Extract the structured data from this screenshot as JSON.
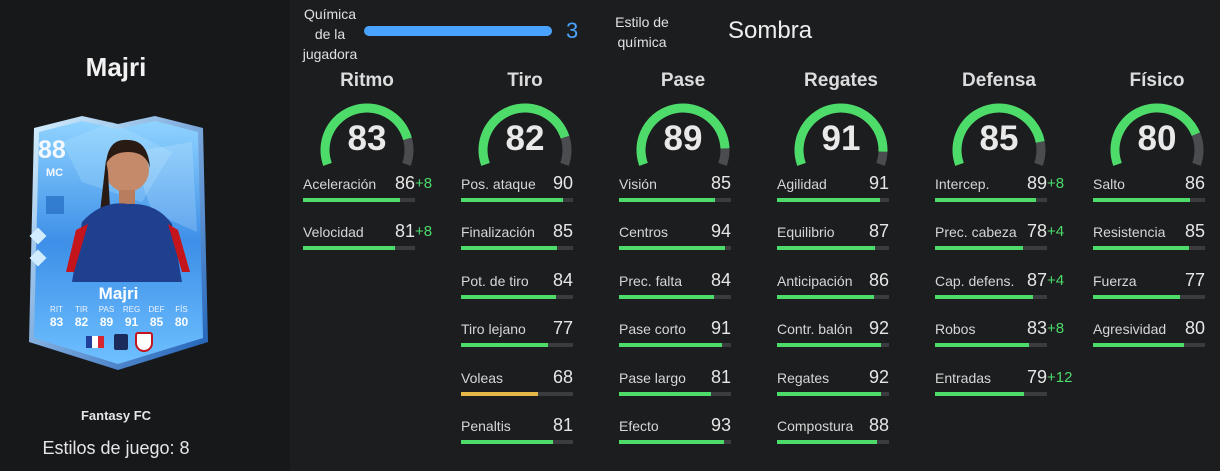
{
  "player": {
    "name_title": "Majri",
    "card": {
      "rating": "88",
      "position": "MC",
      "name": "Majri",
      "stats": [
        {
          "label": "RIT",
          "value": "83"
        },
        {
          "label": "TIR",
          "value": "82"
        },
        {
          "label": "PAS",
          "value": "89"
        },
        {
          "label": "REG",
          "value": "91"
        },
        {
          "label": "DEF",
          "value": "85"
        },
        {
          "label": "FÍS",
          "value": "80"
        }
      ]
    },
    "card_type": "Fantasy FC",
    "playstyles": "Estilos de juego: 8"
  },
  "chemistry": {
    "label": "Química de la jugadora",
    "value": "3",
    "fraction": 1.0,
    "style_label": "Estilo de química",
    "style_value": "Sombra"
  },
  "colors": {
    "good": "#4ddc6a",
    "mid": "#e6b84a",
    "chem": "#4aa3ff"
  },
  "columns": [
    {
      "title": "Ritmo",
      "value": "83",
      "stats": [
        {
          "name": "Aceleración",
          "value": "86",
          "boost": "+8"
        },
        {
          "name": "Velocidad",
          "value": "81",
          "boost": "+8"
        }
      ]
    },
    {
      "title": "Tiro",
      "value": "82",
      "stats": [
        {
          "name": "Pos. ataque",
          "value": "90",
          "boost": ""
        },
        {
          "name": "Finalización",
          "value": "85",
          "boost": ""
        },
        {
          "name": "Pot. de tiro",
          "value": "84",
          "boost": ""
        },
        {
          "name": "Tiro lejano",
          "value": "77",
          "boost": ""
        },
        {
          "name": "Voleas",
          "value": "68",
          "boost": ""
        },
        {
          "name": "Penaltis",
          "value": "81",
          "boost": ""
        }
      ]
    },
    {
      "title": "Pase",
      "value": "89",
      "stats": [
        {
          "name": "Visión",
          "value": "85",
          "boost": ""
        },
        {
          "name": "Centros",
          "value": "94",
          "boost": ""
        },
        {
          "name": "Prec. falta",
          "value": "84",
          "boost": ""
        },
        {
          "name": "Pase corto",
          "value": "91",
          "boost": ""
        },
        {
          "name": "Pase largo",
          "value": "81",
          "boost": ""
        },
        {
          "name": "Efecto",
          "value": "93",
          "boost": ""
        }
      ]
    },
    {
      "title": "Regates",
      "value": "91",
      "stats": [
        {
          "name": "Agilidad",
          "value": "91",
          "boost": ""
        },
        {
          "name": "Equilibrio",
          "value": "87",
          "boost": ""
        },
        {
          "name": "Anticipación",
          "value": "86",
          "boost": ""
        },
        {
          "name": "Contr. balón",
          "value": "92",
          "boost": ""
        },
        {
          "name": "Regates",
          "value": "92",
          "boost": ""
        },
        {
          "name": "Compostura",
          "value": "88",
          "boost": ""
        }
      ]
    },
    {
      "title": "Defensa",
      "value": "85",
      "stats": [
        {
          "name": "Intercep.",
          "value": "89",
          "boost": "+8"
        },
        {
          "name": "Prec. cabeza",
          "value": "78",
          "boost": "+4"
        },
        {
          "name": "Cap. defens.",
          "value": "87",
          "boost": "+4"
        },
        {
          "name": "Robos",
          "value": "83",
          "boost": "+8"
        },
        {
          "name": "Entradas",
          "value": "79",
          "boost": "+12"
        }
      ]
    },
    {
      "title": "Físico",
      "value": "80",
      "stats": [
        {
          "name": "Salto",
          "value": "86",
          "boost": ""
        },
        {
          "name": "Resistencia",
          "value": "85",
          "boost": ""
        },
        {
          "name": "Fuerza",
          "value": "77",
          "boost": ""
        },
        {
          "name": "Agresividad",
          "value": "80",
          "boost": ""
        }
      ]
    }
  ]
}
